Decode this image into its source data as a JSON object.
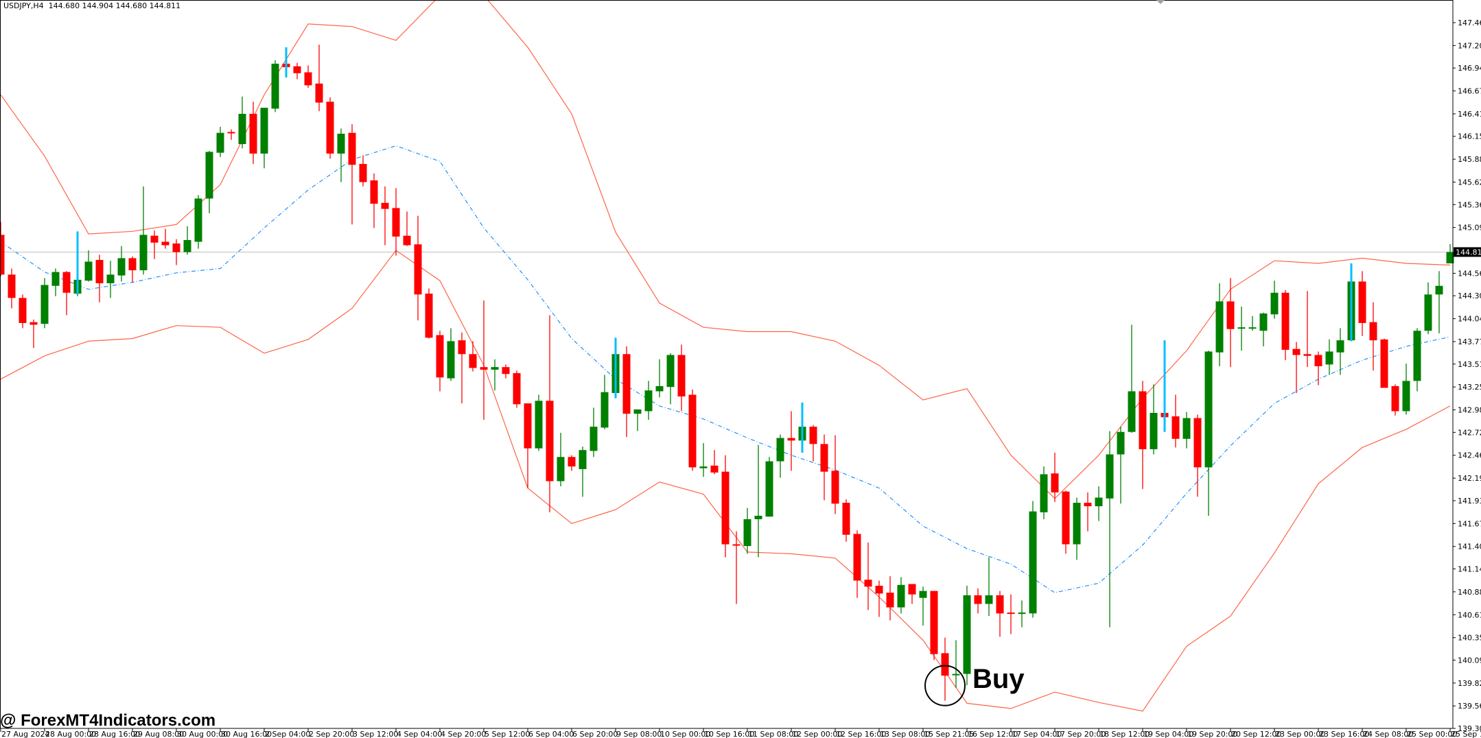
{
  "header": {
    "symbol": "USDJPY,H4",
    "ohlc": "144.680 144.904 144.680 144.811"
  },
  "watermark": "@ ForexMT4Indicators.com",
  "annotation": {
    "label": "Buy"
  },
  "colors": {
    "bull": "#008000",
    "bear": "#ff0000",
    "band": "#ff6347",
    "middle": "#1e90ff",
    "signal": "#00bfff",
    "price_line": "#c0c0c0"
  },
  "chart_data": {
    "type": "candlestick",
    "title": "USDJPY,H4",
    "ylim": [
      139.3,
      147.78
    ],
    "grid": false,
    "current_price": "144.811",
    "y_ticks": [
      "147.465",
      "147.200",
      "146.940",
      "146.675",
      "146.410",
      "146.150",
      "145.885",
      "145.620",
      "145.360",
      "145.095",
      "144.565",
      "144.305",
      "144.040",
      "143.775",
      "143.515",
      "143.250",
      "142.985",
      "142.725",
      "142.460",
      "142.195",
      "141.935",
      "141.670",
      "141.405",
      "141.145",
      "140.880",
      "140.615",
      "140.350",
      "140.090",
      "139.825",
      "139.560",
      "139.300"
    ],
    "x_labels": [
      "27 Aug 2024",
      "28 Aug 00:00",
      "28 Aug 16:00",
      "29 Aug 08:00",
      "30 Aug 00:00",
      "30 Aug 16:00",
      "2 Sep 04:00",
      "2 Sep 20:00",
      "3 Sep 12:00",
      "4 Sep 04:00",
      "4 Sep 20:00",
      "5 Sep 12:00",
      "6 Sep 04:00",
      "6 Sep 20:00",
      "9 Sep 08:00",
      "10 Sep 00:00",
      "10 Sep 16:00",
      "11 Sep 08:00",
      "12 Sep 00:00",
      "12 Sep 16:00",
      "13 Sep 08:00",
      "15 Sep 21:05",
      "16 Sep 12:00",
      "17 Sep 04:00",
      "17 Sep 20:00",
      "18 Sep 12:00",
      "19 Sep 04:00",
      "19 Sep 20:00",
      "20 Sep 12:00",
      "23 Sep 00:00",
      "23 Sep 16:00",
      "24 Sep 08:00",
      "25 Sep 00:00",
      "25 Sep 16:00"
    ],
    "candles_ohlc": [
      [
        145.01,
        145.16,
        144.53,
        144.55
      ],
      [
        144.55,
        144.62,
        144.16,
        144.28
      ],
      [
        144.28,
        144.32,
        143.93,
        143.99
      ],
      [
        144.0,
        144.03,
        143.7,
        143.97
      ],
      [
        143.98,
        144.51,
        143.93,
        144.43
      ],
      [
        144.42,
        144.62,
        144.3,
        144.58
      ],
      [
        144.58,
        144.59,
        144.08,
        144.34
      ],
      [
        144.33,
        144.51,
        144.3,
        144.49
      ],
      [
        144.48,
        144.83,
        144.47,
        144.7
      ],
      [
        144.72,
        144.78,
        144.23,
        144.45
      ],
      [
        144.45,
        144.71,
        144.28,
        144.55
      ],
      [
        144.54,
        144.88,
        144.47,
        144.74
      ],
      [
        144.74,
        144.76,
        144.46,
        144.6
      ],
      [
        144.6,
        145.57,
        144.55,
        145.01
      ],
      [
        145.0,
        145.06,
        144.73,
        144.92
      ],
      [
        144.93,
        145.08,
        144.85,
        144.89
      ],
      [
        144.91,
        144.96,
        144.66,
        144.81
      ],
      [
        144.81,
        145.11,
        144.78,
        144.95
      ],
      [
        144.93,
        145.47,
        144.85,
        145.43
      ],
      [
        145.43,
        145.98,
        145.26,
        145.97
      ],
      [
        145.96,
        146.26,
        145.91,
        146.19
      ],
      [
        146.2,
        146.23,
        146.11,
        146.19
      ],
      [
        146.06,
        146.61,
        146.01,
        146.41
      ],
      [
        146.41,
        146.55,
        145.83,
        145.95
      ],
      [
        145.95,
        146.48,
        145.78,
        146.48
      ],
      [
        146.47,
        147.03,
        146.43,
        146.99
      ],
      [
        146.99,
        147.01,
        146.93,
        146.95
      ],
      [
        146.96,
        147.0,
        146.81,
        146.88
      ],
      [
        146.89,
        146.97,
        146.71,
        146.74
      ],
      [
        146.76,
        147.21,
        146.44,
        146.54
      ],
      [
        146.55,
        146.6,
        145.89,
        145.95
      ],
      [
        145.95,
        146.24,
        145.62,
        146.18
      ],
      [
        146.19,
        146.29,
        145.13,
        145.82
      ],
      [
        145.83,
        145.93,
        145.57,
        145.62
      ],
      [
        145.64,
        145.72,
        145.09,
        145.37
      ],
      [
        145.38,
        145.57,
        144.89,
        145.31
      ],
      [
        145.32,
        145.55,
        144.77,
        144.99
      ],
      [
        145.0,
        145.28,
        144.88,
        144.89
      ],
      [
        144.9,
        145.23,
        144.02,
        144.32
      ],
      [
        144.33,
        144.39,
        143.81,
        143.82
      ],
      [
        143.85,
        143.9,
        143.2,
        143.36
      ],
      [
        143.35,
        143.93,
        143.32,
        143.78
      ],
      [
        143.79,
        143.88,
        143.06,
        143.63
      ],
      [
        143.63,
        143.78,
        143.43,
        143.47
      ],
      [
        143.48,
        144.25,
        142.87,
        143.45
      ],
      [
        143.45,
        143.57,
        143.21,
        143.48
      ],
      [
        143.48,
        143.51,
        143.35,
        143.4
      ],
      [
        143.41,
        143.44,
        143.01,
        143.05
      ],
      [
        143.06,
        143.06,
        142.08,
        142.54
      ],
      [
        142.54,
        143.16,
        142.51,
        143.09
      ],
      [
        143.09,
        144.08,
        141.8,
        142.16
      ],
      [
        142.16,
        142.72,
        142.1,
        142.44
      ],
      [
        142.44,
        142.46,
        142.28,
        142.33
      ],
      [
        142.3,
        142.56,
        141.98,
        142.52
      ],
      [
        142.51,
        143.01,
        142.44,
        142.79
      ],
      [
        142.78,
        143.39,
        142.76,
        143.19
      ],
      [
        143.18,
        143.72,
        143.12,
        143.63
      ],
      [
        143.63,
        143.72,
        142.67,
        142.94
      ],
      [
        142.94,
        142.99,
        142.74,
        142.99
      ],
      [
        142.97,
        143.32,
        142.87,
        143.21
      ],
      [
        143.2,
        143.57,
        143.13,
        143.26
      ],
      [
        143.25,
        143.64,
        143.05,
        143.62
      ],
      [
        143.62,
        143.74,
        142.97,
        143.14
      ],
      [
        143.16,
        143.22,
        142.28,
        142.32
      ],
      [
        142.31,
        142.6,
        142.21,
        142.33
      ],
      [
        142.34,
        142.52,
        142.24,
        142.26
      ],
      [
        142.27,
        142.46,
        141.28,
        141.43
      ],
      [
        141.43,
        141.58,
        140.74,
        141.42
      ],
      [
        141.41,
        141.85,
        141.32,
        141.72
      ],
      [
        141.72,
        142.58,
        141.28,
        141.76
      ],
      [
        141.75,
        142.44,
        141.75,
        142.39
      ],
      [
        142.39,
        142.7,
        142.2,
        142.66
      ],
      [
        142.66,
        142.97,
        142.28,
        142.63
      ],
      [
        142.63,
        142.81,
        142.61,
        142.79
      ],
      [
        142.79,
        142.81,
        142.39,
        142.59
      ],
      [
        142.59,
        142.7,
        141.94,
        142.27
      ],
      [
        142.28,
        142.69,
        141.78,
        141.9
      ],
      [
        141.91,
        141.95,
        141.46,
        141.54
      ],
      [
        141.55,
        141.59,
        140.81,
        141.01
      ],
      [
        141.02,
        141.45,
        140.67,
        140.94
      ],
      [
        140.95,
        141.01,
        140.59,
        140.86
      ],
      [
        140.87,
        141.06,
        140.55,
        140.7
      ],
      [
        140.7,
        141.05,
        140.63,
        140.96
      ],
      [
        140.97,
        140.97,
        140.74,
        140.85
      ],
      [
        140.81,
        140.94,
        140.49,
        140.89
      ],
      [
        140.89,
        140.89,
        140.09,
        140.16
      ],
      [
        140.17,
        140.35,
        139.62,
        139.91
      ],
      [
        139.92,
        140.32,
        139.77,
        139.93
      ],
      [
        139.93,
        140.95,
        139.8,
        140.84
      ],
      [
        140.84,
        140.92,
        140.63,
        140.74
      ],
      [
        140.74,
        141.28,
        140.6,
        140.84
      ],
      [
        140.84,
        140.89,
        140.36,
        140.63
      ],
      [
        140.64,
        140.85,
        140.39,
        140.63
      ],
      [
        140.63,
        140.78,
        140.47,
        140.64
      ],
      [
        140.63,
        141.93,
        140.58,
        141.81
      ],
      [
        141.8,
        142.33,
        141.72,
        142.24
      ],
      [
        142.25,
        142.49,
        141.92,
        142.03
      ],
      [
        142.04,
        142.05,
        141.32,
        141.43
      ],
      [
        141.43,
        141.97,
        141.25,
        141.91
      ],
      [
        141.91,
        142.03,
        141.58,
        141.87
      ],
      [
        141.87,
        142.1,
        141.7,
        141.97
      ],
      [
        141.96,
        142.74,
        140.47,
        142.47
      ],
      [
        142.47,
        142.79,
        141.9,
        142.73
      ],
      [
        142.73,
        143.97,
        142.72,
        143.2
      ],
      [
        143.2,
        143.32,
        142.07,
        142.53
      ],
      [
        142.53,
        143.28,
        142.47,
        142.95
      ],
      [
        142.95,
        142.97,
        142.89,
        142.9
      ],
      [
        142.91,
        143.16,
        142.55,
        142.65
      ],
      [
        142.65,
        142.96,
        142.54,
        142.89
      ],
      [
        142.89,
        142.93,
        141.98,
        142.32
      ],
      [
        142.32,
        143.67,
        141.76,
        143.66
      ],
      [
        143.65,
        144.45,
        143.49,
        144.24
      ],
      [
        144.24,
        144.51,
        143.48,
        143.92
      ],
      [
        143.93,
        144.18,
        143.67,
        143.94
      ],
      [
        143.93,
        144.07,
        143.9,
        143.94
      ],
      [
        143.9,
        144.11,
        143.72,
        144.1
      ],
      [
        144.09,
        144.48,
        144.04,
        144.34
      ],
      [
        144.34,
        144.37,
        143.56,
        143.68
      ],
      [
        143.69,
        143.77,
        143.18,
        143.62
      ],
      [
        143.63,
        144.36,
        143.48,
        143.61
      ],
      [
        143.62,
        143.66,
        143.27,
        143.49
      ],
      [
        143.51,
        143.8,
        143.39,
        143.66
      ],
      [
        143.65,
        143.93,
        143.39,
        143.79
      ],
      [
        143.79,
        144.55,
        143.78,
        144.47
      ],
      [
        144.47,
        144.59,
        143.84,
        143.99
      ],
      [
        144.0,
        144.23,
        143.44,
        143.79
      ],
      [
        143.8,
        143.81,
        143.24,
        143.24
      ],
      [
        143.26,
        143.28,
        142.92,
        142.97
      ],
      [
        142.97,
        143.52,
        142.93,
        143.32
      ],
      [
        143.32,
        143.93,
        143.2,
        143.9
      ],
      [
        143.9,
        144.46,
        143.86,
        144.32
      ],
      [
        144.32,
        144.59,
        143.87,
        144.42
      ],
      [
        144.68,
        144.904,
        144.68,
        144.811
      ]
    ],
    "signals": [
      {
        "candle": 7,
        "high": 145.05,
        "low": 144.32
      },
      {
        "candle": 26,
        "high": 147.18,
        "low": 146.83
      },
      {
        "candle": 56,
        "high": 143.82,
        "low": 143.12
      },
      {
        "candle": 73,
        "high": 143.07,
        "low": 142.49
      },
      {
        "candle": 106,
        "high": 143.79,
        "low": 142.73
      },
      {
        "candle": 123,
        "high": 144.68,
        "low": 143.78
      }
    ],
    "bands_at_x_labels": {
      "upper": [
        146.63,
        145.92,
        145.02,
        145.05,
        145.13,
        145.59,
        146.63,
        147.45,
        147.42,
        147.26,
        147.78,
        147.78,
        147.18,
        146.41,
        145.04,
        144.22,
        143.94,
        143.89,
        143.89,
        143.78,
        143.5,
        143.1,
        143.23,
        142.46,
        141.96,
        142.46,
        143.12,
        143.67,
        144.38,
        144.71,
        144.68,
        144.74,
        144.68,
        144.66
      ],
      "middle": [
        144.93,
        144.58,
        144.38,
        144.46,
        144.57,
        144.62,
        145.09,
        145.53,
        145.88,
        146.04,
        145.86,
        145.09,
        144.49,
        143.81,
        143.34,
        143.03,
        142.88,
        142.66,
        142.46,
        142.29,
        142.08,
        141.64,
        141.38,
        141.2,
        140.87,
        140.98,
        141.42,
        142.02,
        142.57,
        143.06,
        143.34,
        143.56,
        143.72,
        143.83
      ],
      "lower": [
        143.34,
        143.61,
        143.78,
        143.81,
        143.96,
        143.94,
        143.64,
        143.8,
        144.16,
        144.83,
        144.48,
        143.5,
        142.08,
        141.67,
        141.83,
        142.15,
        142.01,
        141.34,
        141.32,
        141.27,
        140.82,
        140.32,
        139.59,
        139.53,
        139.72,
        139.6,
        139.5,
        140.25,
        140.6,
        141.33,
        142.13,
        142.55,
        142.76,
        143.03
      ]
    },
    "buy_signal_candle": 86
  }
}
